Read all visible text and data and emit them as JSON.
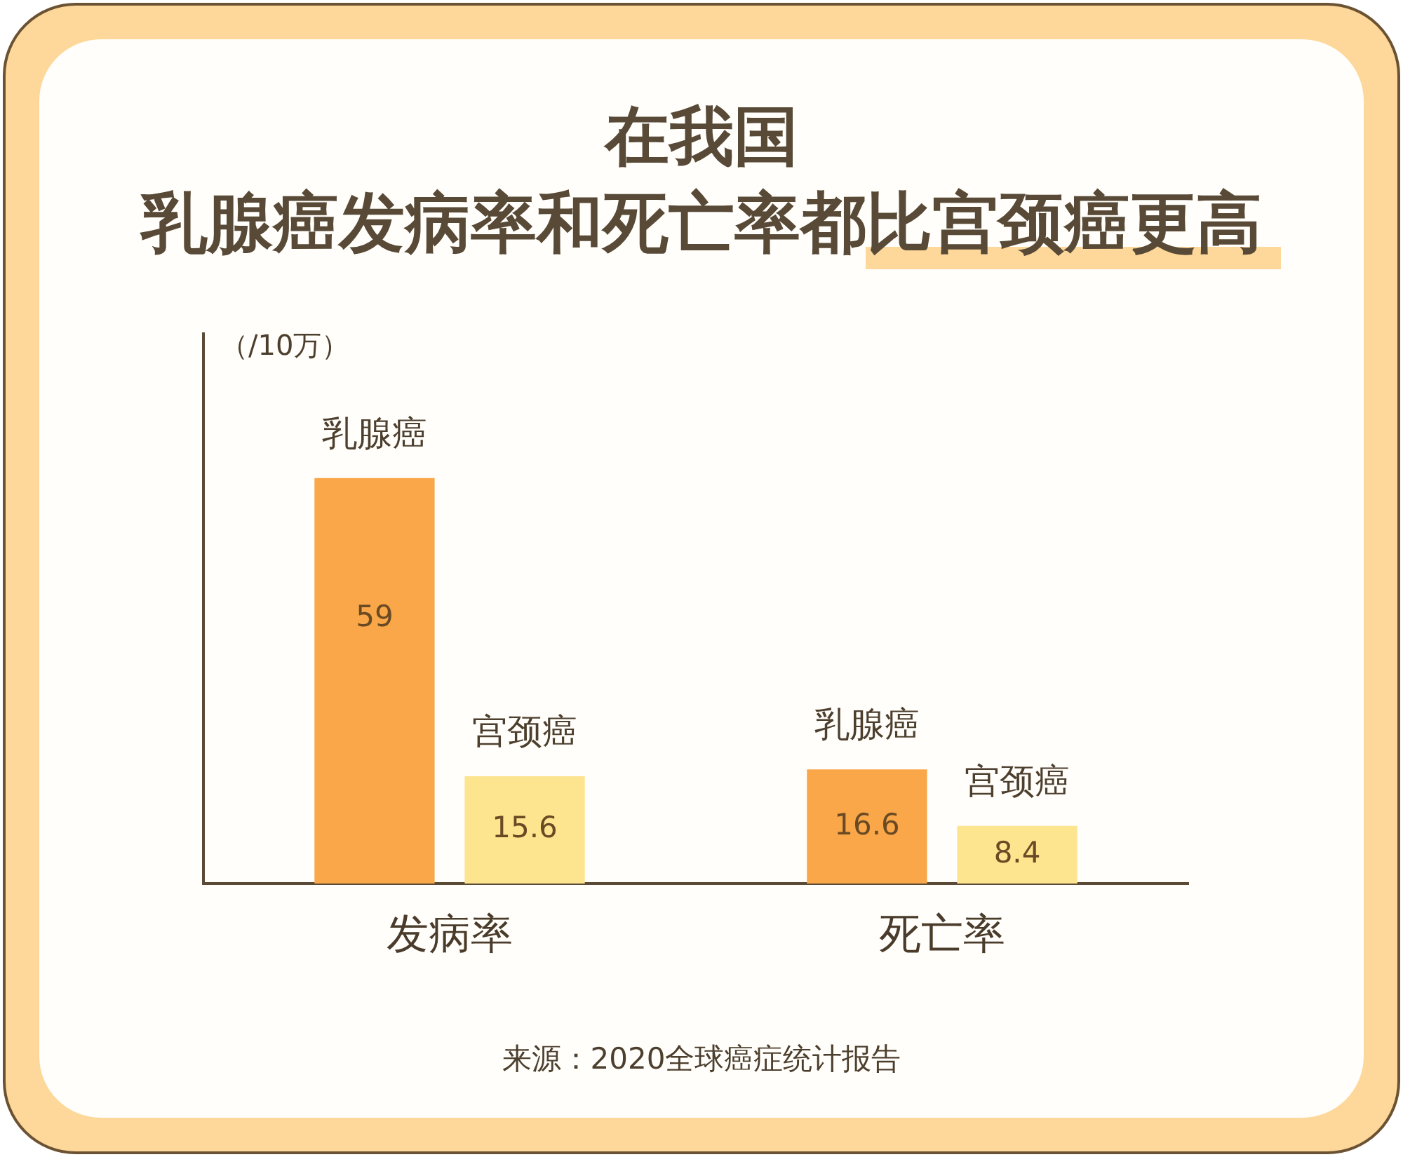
{
  "chart_data": {
    "type": "bar",
    "title": "在我国",
    "subtitle": "乳腺癌发病率和死亡率都比宫颈癌更高",
    "ylabel": "（/10万）",
    "categories": [
      "发病率",
      "死亡率"
    ],
    "series": [
      {
        "name": "乳腺癌",
        "color": "#f9a748",
        "values": [
          59,
          16.6
        ]
      },
      {
        "name": "宫颈癌",
        "color": "#fde48f",
        "values": [
          15.6,
          8.4
        ]
      }
    ],
    "ylim": [
      0,
      80
    ],
    "data_labels": true,
    "tick_labels": "x",
    "annotations": [
      "来源：2020全球癌症统计报告"
    ]
  }
}
